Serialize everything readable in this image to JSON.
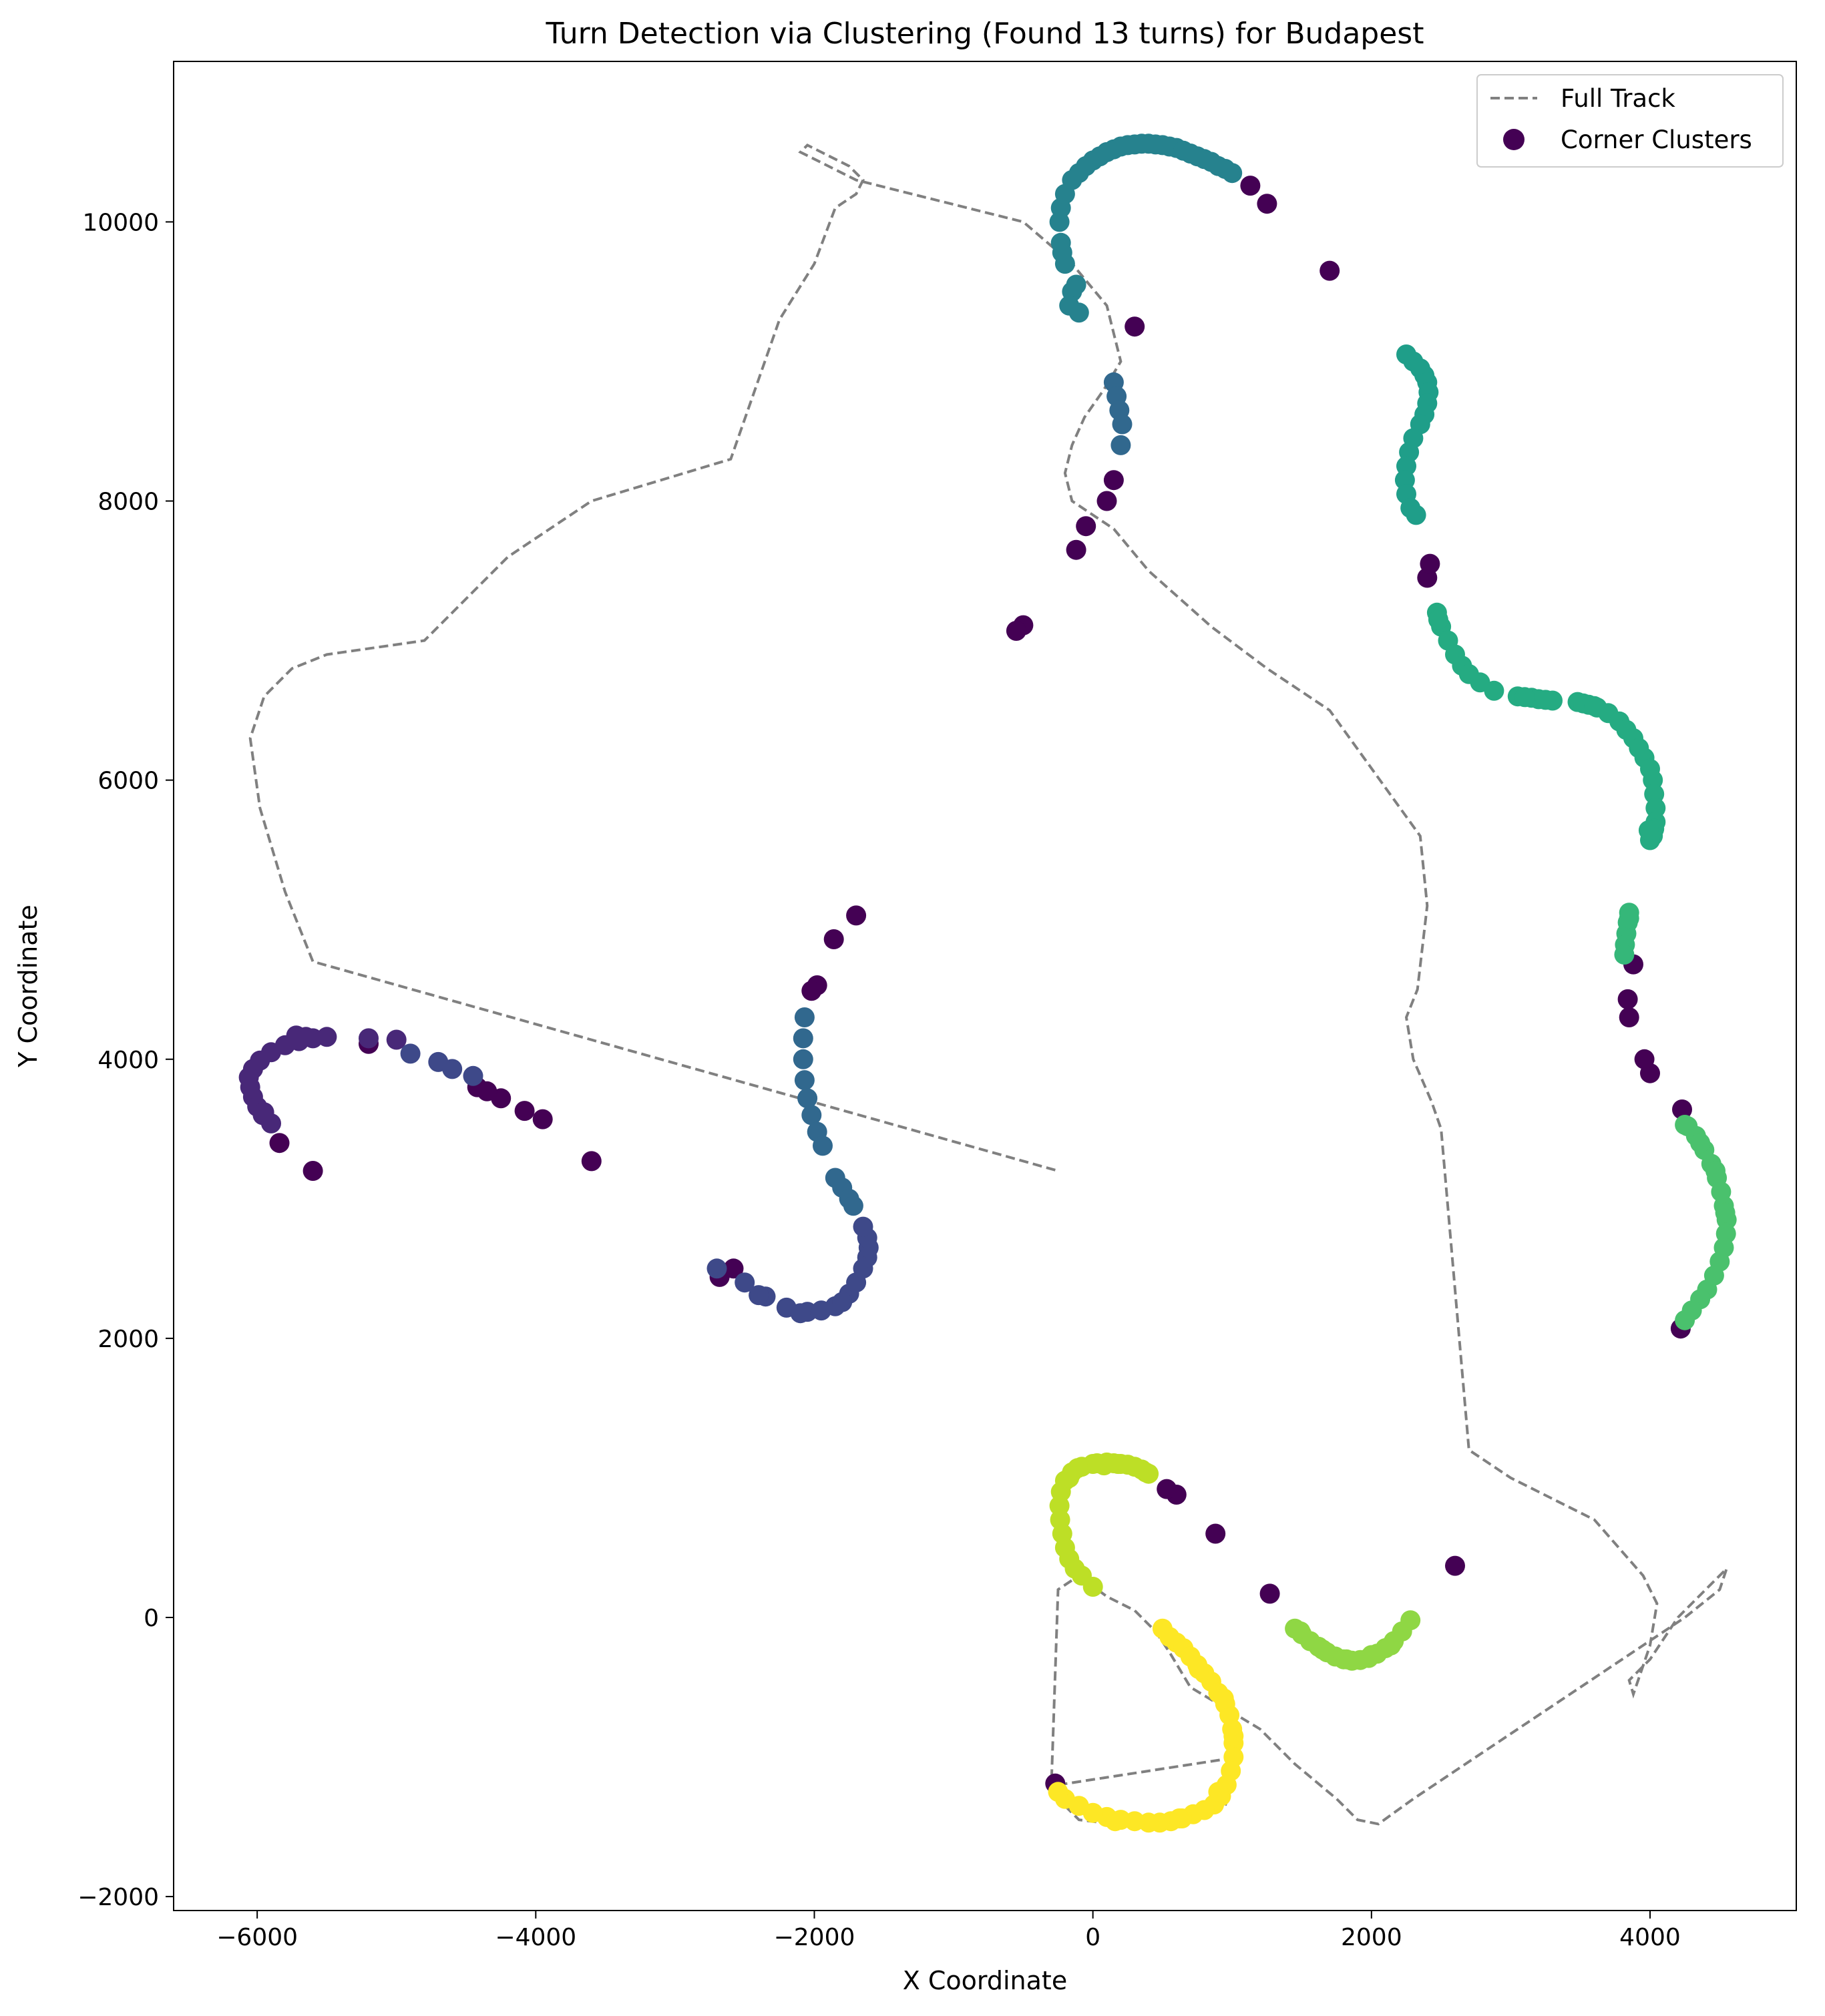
{
  "chart_data": {
    "type": "scatter",
    "title": "Turn Detection via Clustering (Found 13 turns) for Budapest",
    "xlabel": "X Coordinate",
    "ylabel": "Y Coordinate",
    "xlim": [
      -6600,
      5050
    ],
    "ylim": [
      -2100,
      11150
    ],
    "xticks": [
      -6000,
      -4000,
      -2000,
      0,
      2000,
      4000
    ],
    "yticks": [
      -2000,
      0,
      2000,
      4000,
      6000,
      8000,
      10000
    ],
    "xtick_labels": [
      "−6000",
      "−4000",
      "−2000",
      "0",
      "2000",
      "4000"
    ],
    "ytick_labels": [
      "−2000",
      "0",
      "2000",
      "4000",
      "6000",
      "8000",
      "10000"
    ],
    "grid": false,
    "legend_position": "top-right",
    "legend": [
      {
        "label": "Full Track",
        "kind": "line",
        "color": "#808080"
      },
      {
        "label": "Corner Clusters",
        "kind": "marker",
        "color": "#440154"
      }
    ],
    "track_line": {
      "name": "Full Track",
      "color": "#808080",
      "style": "dashed",
      "x": [
        -250,
        1050,
        950,
        150,
        -100,
        -300,
        -250,
        -100,
        100,
        300,
        450,
        550,
        700,
        1200,
        1450,
        1750,
        1900,
        2050,
        2300,
        2600,
        4250,
        4500,
        4550,
        4450,
        4200,
        4000,
        3850,
        3880,
        4000,
        4050,
        3950,
        3600,
        3000,
        2700,
        2500,
        2430,
        2300,
        2250,
        2330,
        2400,
        2350,
        1700,
        1250,
        850,
        400,
        150,
        -150,
        -200,
        -150,
        -60,
        80,
        200,
        150,
        100,
        -150,
        -500,
        -1700,
        -2000,
        -2100,
        -2050,
        -1950,
        -1750,
        -1650,
        -1700,
        -1850,
        -2000,
        -2250,
        -2600,
        -3600,
        -4200,
        -4800,
        -5500,
        -5750,
        -5950,
        -6050,
        -5980,
        -5800,
        -5600,
        -250
      ],
      "y": [
        -1200,
        -1000,
        -1350,
        -1480,
        -1450,
        -1250,
        200,
        300,
        150,
        50,
        -100,
        -250,
        -500,
        -800,
        -1050,
        -1300,
        -1450,
        -1480,
        -1300,
        -1100,
        0,
        200,
        350,
        250,
        0,
        -300,
        -450,
        -550,
        -200,
        100,
        300,
        700,
        1000,
        1200,
        3500,
        3700,
        4000,
        4300,
        4500,
        5100,
        5600,
        6500,
        6800,
        7100,
        7500,
        7800,
        8000,
        8200,
        8400,
        8600,
        8800,
        9000,
        9200,
        9400,
        9700,
        10000,
        10300,
        10450,
        10500,
        10550,
        10500,
        10400,
        10300,
        10200,
        10100,
        9700,
        9300,
        8300,
        8000,
        7600,
        7000,
        6900,
        6800,
        6600,
        6300,
        5800,
        5200,
        4700,
        3200
      ]
    },
    "series": [
      {
        "cluster": -1,
        "color": "#440154",
        "x": [
          -270,
          1270,
          880,
          600,
          530,
          2600,
          4220,
          4230,
          4000,
          3960,
          3850,
          3840,
          3880,
          2400,
          2420,
          1700,
          1250,
          1130,
          300,
          150,
          100,
          -120,
          -50,
          -500,
          -550,
          -1700,
          -1860,
          -1980,
          -2020,
          -2580,
          -2680,
          -3600,
          -3950,
          -4080,
          -4250,
          -4350,
          -4420,
          -5200,
          -5600,
          -5840
        ],
        "y": [
          -1190,
          170,
          600,
          880,
          920,
          370,
          2070,
          3640,
          3900,
          4000,
          4300,
          4430,
          4680,
          7450,
          7550,
          9650,
          10130,
          10260,
          9250,
          8150,
          8000,
          7650,
          7820,
          7110,
          7070,
          5030,
          4860,
          4530,
          4490,
          2500,
          2440,
          3270,
          3570,
          3630,
          3720,
          3770,
          3800,
          4110,
          3200,
          3400
        ]
      },
      {
        "cluster": 0,
        "color": "#482878",
        "x": [
          -5000,
          -5200,
          -5500,
          -5600,
          -5700,
          -5800,
          -5900,
          -5980,
          -6030,
          -6060,
          -6050,
          -6030,
          -6000,
          -5960,
          -5900,
          -5720,
          -5650,
          -5950
        ],
        "y": [
          4140,
          4150,
          4160,
          4150,
          4130,
          4100,
          4050,
          3990,
          3930,
          3870,
          3800,
          3730,
          3660,
          3600,
          3540,
          4170,
          4160,
          3620
        ]
      },
      {
        "cluster": 1,
        "color": "#3e4989",
        "x": [
          -4700,
          -4600,
          -4450,
          -4900,
          -2700,
          -2500,
          -2350,
          -2200,
          -2050,
          -1950,
          -1850,
          -1750,
          -1700,
          -1650,
          -1620,
          -1610,
          -1620,
          -1650,
          -2400,
          -2100,
          -1800
        ],
        "y": [
          3980,
          3930,
          3880,
          4040,
          2500,
          2400,
          2300,
          2220,
          2190,
          2200,
          2230,
          2320,
          2400,
          2500,
          2580,
          2650,
          2720,
          2800,
          2310,
          2180,
          2260
        ]
      },
      {
        "cluster": 2,
        "color": "#31688e",
        "x": [
          -2070,
          -2080,
          -2080,
          -2070,
          -2050,
          -2020,
          -1980,
          -1940,
          -1850,
          -1800,
          -1750,
          -1720,
          150,
          170,
          190,
          210,
          200
        ],
        "y": [
          4300,
          4150,
          4000,
          3850,
          3720,
          3600,
          3480,
          3380,
          3150,
          3080,
          3000,
          2950,
          8850,
          8750,
          8650,
          8550,
          8400
        ]
      },
      {
        "cluster": 3,
        "color": "#26828e",
        "x": [
          -100,
          -150,
          -200,
          -230,
          -240,
          -230,
          -200,
          -150,
          -100,
          -50,
          0,
          50,
          100,
          150,
          200,
          250,
          300,
          350,
          400,
          450,
          500,
          550,
          600,
          650,
          700,
          750,
          800,
          850,
          900,
          950,
          1000,
          -220,
          -170,
          -120
        ],
        "y": [
          9350,
          9500,
          9700,
          9850,
          10000,
          10100,
          10200,
          10300,
          10350,
          10400,
          10440,
          10470,
          10500,
          10520,
          10540,
          10550,
          10555,
          10560,
          10560,
          10555,
          10550,
          10540,
          10530,
          10510,
          10490,
          10470,
          10450,
          10430,
          10400,
          10380,
          10350,
          9780,
          9400,
          9550
        ]
      },
      {
        "cluster": 4,
        "color": "#1f9e89",
        "x": [
          2250,
          2300,
          2350,
          2380,
          2400,
          2410,
          2400,
          2380,
          2350,
          2300,
          2270,
          2250,
          2240,
          2250,
          2280,
          2320
        ],
        "y": [
          9050,
          9000,
          8950,
          8900,
          8850,
          8780,
          8700,
          8620,
          8550,
          8450,
          8350,
          8250,
          8150,
          8050,
          7950,
          7900
        ]
      },
      {
        "cluster": 5,
        "color": "#25ab82",
        "x": [
          2470,
          2500,
          2550,
          2600,
          2650,
          2700,
          2780,
          2880,
          3050,
          3150,
          3200,
          3300,
          3480,
          3520,
          3560,
          3620,
          3700,
          3780,
          3830,
          3880,
          3920,
          3960,
          4000,
          4020,
          4030,
          4040,
          4040,
          4030,
          4020,
          4000,
          2480,
          3100,
          3250,
          3600,
          3990
        ],
        "y": [
          7200,
          7100,
          7000,
          6900,
          6820,
          6760,
          6700,
          6640,
          6600,
          6590,
          6580,
          6570,
          6560,
          6550,
          6540,
          6520,
          6480,
          6420,
          6360,
          6300,
          6230,
          6160,
          6080,
          6000,
          5900,
          5800,
          5700,
          5650,
          5600,
          5570,
          7150,
          6595,
          6575,
          6530,
          5640
        ]
      },
      {
        "cluster": 6,
        "color": "#35b779",
        "x": [
          3850,
          3840,
          3830,
          3820,
          3815,
          3850
        ],
        "y": [
          5050,
          4980,
          4900,
          4820,
          4750,
          5010
        ]
      },
      {
        "cluster": 7,
        "color": "#4ac16d",
        "x": [
          4270,
          4330,
          4390,
          4440,
          4480,
          4510,
          4530,
          4550,
          4545,
          4530,
          4500,
          4460,
          4410,
          4360,
          4300,
          4250,
          4250,
          4360,
          4470,
          4540
        ],
        "y": [
          3520,
          3450,
          3350,
          3250,
          3150,
          3050,
          2950,
          2850,
          2750,
          2650,
          2550,
          2450,
          2350,
          2280,
          2200,
          2130,
          3530,
          3400,
          3200,
          2900
        ]
      },
      {
        "cluster": 8,
        "color": "#8fd744",
        "x": [
          1450,
          1500,
          1560,
          1620,
          1680,
          1740,
          1800,
          1860,
          1920,
          1980,
          2040,
          2100,
          2160,
          2220,
          2280,
          1490,
          1650,
          1820,
          2000,
          2140
        ],
        "y": [
          -80,
          -120,
          -170,
          -210,
          -250,
          -280,
          -300,
          -310,
          -305,
          -290,
          -260,
          -220,
          -170,
          -100,
          -20,
          -100,
          -230,
          -300,
          -270,
          -200
        ]
      },
      {
        "cluster": 9,
        "color": "#bddf26",
        "x": [
          400,
          350,
          300,
          200,
          100,
          0,
          -80,
          -150,
          -200,
          -230,
          -240,
          -235,
          -220,
          -200,
          -170,
          -130,
          -80,
          0,
          80,
          150,
          250,
          -170,
          -110,
          30,
          180,
          380
        ],
        "y": [
          1030,
          1060,
          1080,
          1100,
          1110,
          1100,
          1080,
          1040,
          980,
          900,
          800,
          700,
          600,
          500,
          420,
          350,
          300,
          220,
          1090,
          1105,
          1095,
          1000,
          1070,
          1105,
          1100,
          1040
        ]
      },
      {
        "cluster": 10,
        "color": "#fde725",
        "x": [
          500,
          600,
          650,
          700,
          750,
          800,
          850,
          900,
          950,
          980,
          1000,
          1010,
          1010,
          990,
          960,
          920,
          870,
          800,
          720,
          640,
          560,
          480,
          400,
          300,
          200,
          100,
          0,
          -100,
          -200,
          -250,
          550,
          760,
          940,
          1010,
          900,
          620,
          160
        ],
        "y": [
          -80,
          -180,
          -220,
          -280,
          -340,
          -400,
          -460,
          -540,
          -620,
          -700,
          -800,
          -900,
          -1000,
          -1100,
          -1200,
          -1280,
          -1340,
          -1380,
          -1410,
          -1440,
          -1460,
          -1470,
          -1470,
          -1460,
          -1450,
          -1430,
          -1400,
          -1350,
          -1300,
          -1250,
          -140,
          -370,
          -580,
          -850,
          -1250,
          -1440,
          -1460
        ]
      }
    ]
  }
}
